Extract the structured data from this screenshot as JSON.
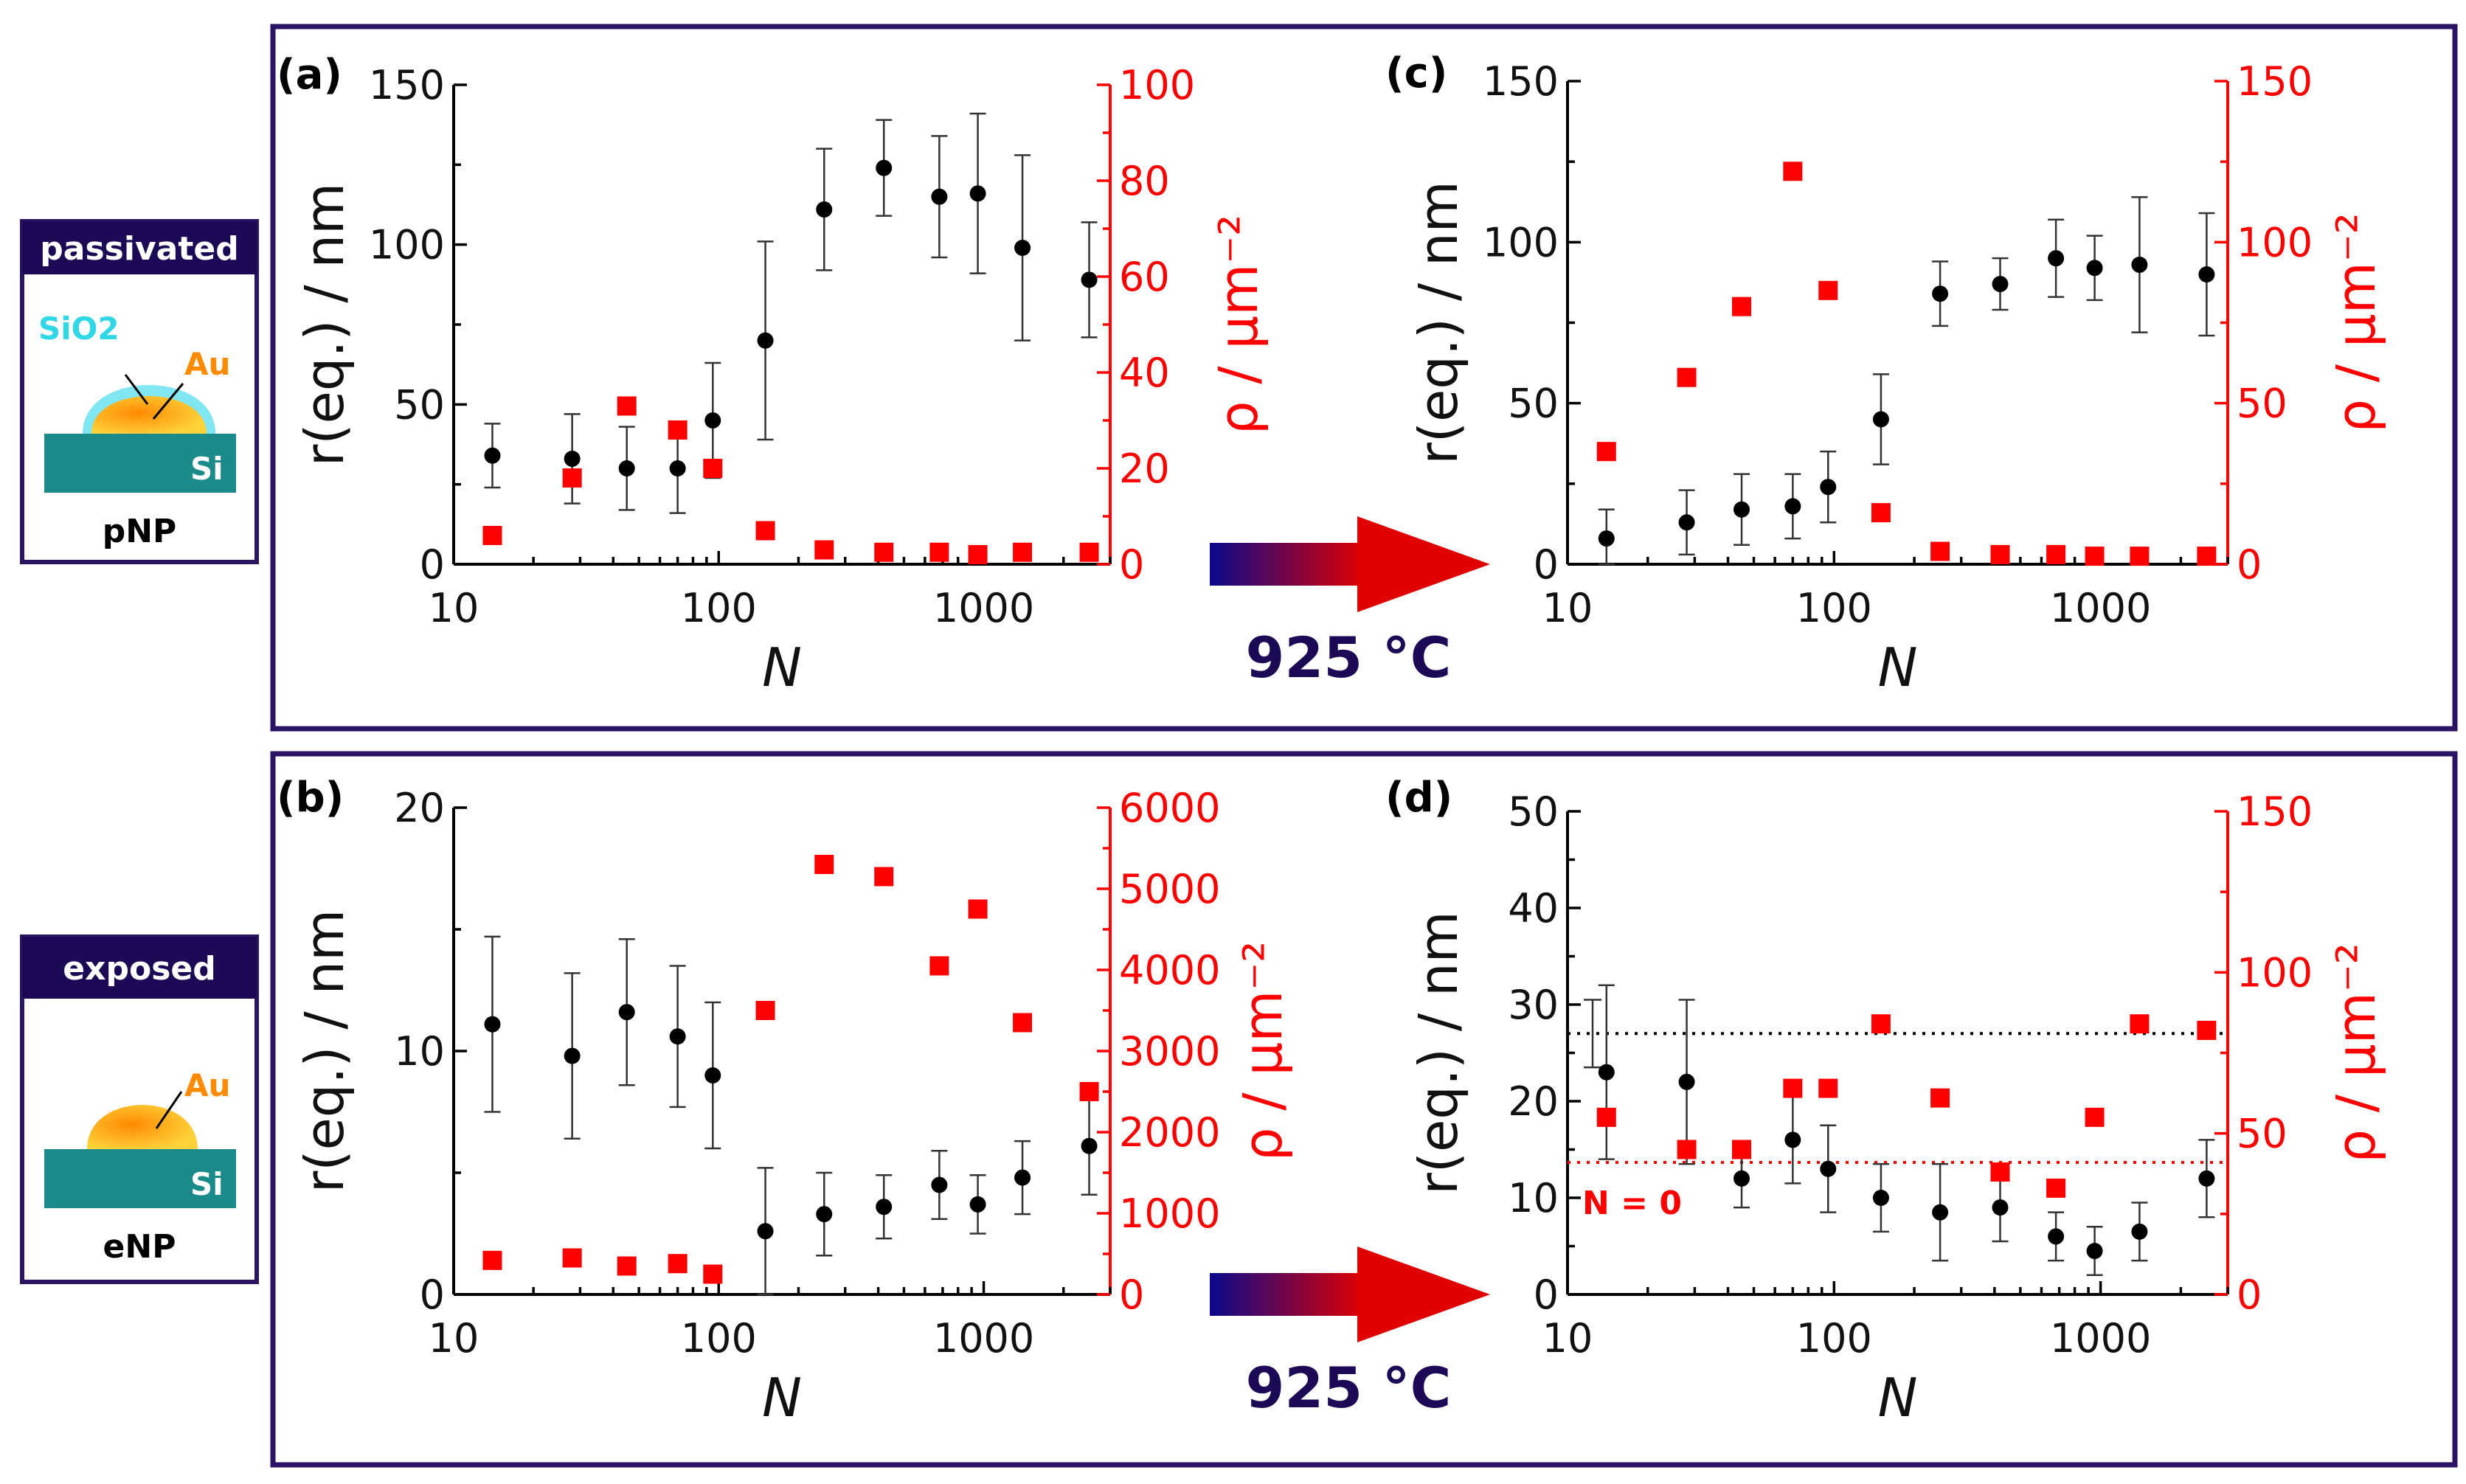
{
  "figure": {
    "treatment_label": "925 °C",
    "colors": {
      "frame": "#2a1463",
      "left_axis": "#000000",
      "right_axis": "#ff0000",
      "arrow_start": "#0a0a8c",
      "arrow_end": "#e00000",
      "temp_text": "#1c0a57"
    }
  },
  "insets": [
    {
      "title": "passivated",
      "caption": "pNP",
      "labels": [
        "SiO2",
        "Au",
        "Si"
      ]
    },
    {
      "title": "exposed",
      "caption": "eNP",
      "labels": [
        "Au",
        "Si"
      ]
    }
  ],
  "chart_data": [
    {
      "panel": "(a)",
      "type": "scatter",
      "xlabel": "N",
      "ylabel": "r(eq.) / nm",
      "y2label": "ρ / μm⁻²",
      "x_scale": "log",
      "xlim": [
        10,
        3000
      ],
      "x_ticks": [
        10,
        100,
        1000
      ],
      "x_tick_labels": [
        "10",
        "100",
        "1000"
      ],
      "ylim": [
        0,
        150
      ],
      "y_ticks": [
        0,
        50,
        100,
        150
      ],
      "y_tick_labels": [
        "0",
        "50",
        "100",
        "150"
      ],
      "y2lim": [
        0,
        100
      ],
      "y2_ticks": [
        0,
        20,
        40,
        60,
        80,
        100
      ],
      "y2_tick_labels": [
        "0",
        "20",
        "40",
        "60",
        "80",
        "100"
      ],
      "series": [
        {
          "name": "r(eq.)",
          "axis": "left",
          "marker": "circle",
          "x": [
            14,
            28,
            45,
            70,
            95,
            150,
            250,
            420,
            680,
            950,
            1400,
            2500
          ],
          "values": [
            34,
            33,
            30,
            30,
            45,
            70,
            111,
            124,
            115,
            116,
            99,
            89
          ],
          "errors": [
            10,
            14,
            13,
            14,
            18,
            31,
            19,
            15,
            19,
            25,
            29,
            18
          ]
        },
        {
          "name": "ρ",
          "axis": "right",
          "marker": "square",
          "x": [
            14,
            28,
            45,
            70,
            95,
            150,
            250,
            420,
            680,
            950,
            1400,
            2500
          ],
          "values": [
            6,
            18,
            33,
            28,
            20,
            7,
            3,
            2.5,
            2.5,
            2,
            2.5,
            2.5
          ]
        }
      ]
    },
    {
      "panel": "(b)",
      "type": "scatter",
      "xlabel": "N",
      "ylabel": "r(eq.) / nm",
      "y2label": "ρ / μm⁻²",
      "x_scale": "log",
      "xlim": [
        10,
        3000
      ],
      "x_ticks": [
        10,
        100,
        1000
      ],
      "x_tick_labels": [
        "10",
        "100",
        "1000"
      ],
      "ylim": [
        0,
        20
      ],
      "y_ticks": [
        0,
        10,
        20
      ],
      "y_tick_labels": [
        "0",
        "10",
        "20"
      ],
      "y2lim": [
        0,
        6000
      ],
      "y2_ticks": [
        0,
        1000,
        2000,
        3000,
        4000,
        5000,
        6000
      ],
      "y2_tick_labels": [
        "0",
        "1000",
        "2000",
        "3000",
        "4000",
        "5000",
        "6000"
      ],
      "series": [
        {
          "name": "r(eq.)",
          "axis": "left",
          "marker": "circle",
          "x": [
            14,
            28,
            45,
            70,
            95,
            150,
            250,
            420,
            680,
            950,
            1400,
            2500
          ],
          "values": [
            11.1,
            9.8,
            11.6,
            10.6,
            9.0,
            2.6,
            3.3,
            3.6,
            4.5,
            3.7,
            4.8,
            6.1
          ],
          "errors": [
            3.6,
            3.4,
            3.0,
            2.9,
            3.0,
            2.6,
            1.7,
            1.3,
            1.4,
            1.2,
            1.5,
            2.0
          ]
        },
        {
          "name": "ρ",
          "axis": "right",
          "marker": "square",
          "x": [
            14,
            28,
            45,
            70,
            95,
            150,
            250,
            420,
            680,
            950,
            1400,
            2500
          ],
          "values": [
            420,
            450,
            350,
            380,
            250,
            3500,
            5300,
            5150,
            4050,
            4750,
            3350,
            2500
          ]
        }
      ]
    },
    {
      "panel": "(c)",
      "type": "scatter",
      "xlabel": "N",
      "ylabel": "r(eq.) / nm",
      "y2label": "ρ / μm⁻²",
      "x_scale": "log",
      "xlim": [
        10,
        3000
      ],
      "x_ticks": [
        10,
        100,
        1000
      ],
      "x_tick_labels": [
        "10",
        "100",
        "1000"
      ],
      "ylim": [
        0,
        150
      ],
      "y_ticks": [
        0,
        50,
        100,
        150
      ],
      "y_tick_labels": [
        "0",
        "50",
        "100",
        "150"
      ],
      "y2lim": [
        0,
        150
      ],
      "y2_ticks": [
        0,
        50,
        100,
        150
      ],
      "y2_tick_labels": [
        "0",
        "50",
        "100",
        "150"
      ],
      "series": [
        {
          "name": "r(eq.)",
          "axis": "left",
          "marker": "circle",
          "x": [
            14,
            28,
            45,
            70,
            95,
            150,
            250,
            420,
            680,
            950,
            1400,
            2500
          ],
          "values": [
            8,
            13,
            17,
            18,
            24,
            45,
            84,
            87,
            95,
            92,
            93,
            90
          ],
          "errors": [
            9,
            10,
            11,
            10,
            11,
            14,
            10,
            8,
            12,
            10,
            21,
            19
          ]
        },
        {
          "name": "ρ",
          "axis": "right",
          "marker": "square",
          "x": [
            14,
            28,
            45,
            70,
            95,
            150,
            250,
            420,
            680,
            950,
            1400,
            2500
          ],
          "values": [
            35,
            58,
            80,
            122,
            85,
            16,
            4,
            3,
            3,
            2.5,
            2.5,
            2.5
          ]
        }
      ]
    },
    {
      "panel": "(d)",
      "type": "scatter",
      "xlabel": "N",
      "ylabel": "r(eq.) / nm",
      "y2label": "ρ / μm⁻²",
      "x_scale": "log",
      "xlim": [
        10,
        3000
      ],
      "x_ticks": [
        10,
        100,
        1000
      ],
      "x_tick_labels": [
        "10",
        "100",
        "1000"
      ],
      "ylim": [
        0,
        50
      ],
      "y_ticks": [
        0,
        10,
        20,
        30,
        40,
        50
      ],
      "y_tick_labels": [
        "0",
        "10",
        "20",
        "30",
        "40",
        "50"
      ],
      "y2lim": [
        0,
        150
      ],
      "y2_ticks": [
        0,
        50,
        100,
        150
      ],
      "y2_tick_labels": [
        "0",
        "50",
        "100",
        "150"
      ],
      "reference_lines": [
        {
          "axis": "left",
          "value": 27,
          "color": "#000000",
          "style": "dotted",
          "error": 3.5,
          "label": ""
        },
        {
          "axis": "right",
          "value": 41,
          "color": "#ff0000",
          "style": "dotted",
          "label": "N = 0"
        }
      ],
      "series": [
        {
          "name": "r(eq.)",
          "axis": "left",
          "marker": "circle",
          "x": [
            14,
            28,
            45,
            70,
            95,
            150,
            250,
            420,
            680,
            950,
            1400,
            2500
          ],
          "values": [
            23,
            22,
            12,
            16,
            13,
            10,
            8.5,
            9,
            6,
            4.5,
            6.5,
            12
          ],
          "errors": [
            9,
            8.5,
            3,
            4.5,
            4.5,
            3.5,
            5,
            3.5,
            2.5,
            2.5,
            3,
            4
          ]
        },
        {
          "name": "ρ",
          "axis": "right",
          "marker": "square",
          "x": [
            14,
            28,
            45,
            70,
            95,
            150,
            250,
            420,
            680,
            950,
            1400,
            2500
          ],
          "values": [
            55,
            45,
            45,
            64,
            64,
            84,
            61,
            38,
            33,
            55,
            84,
            82
          ]
        }
      ]
    }
  ]
}
